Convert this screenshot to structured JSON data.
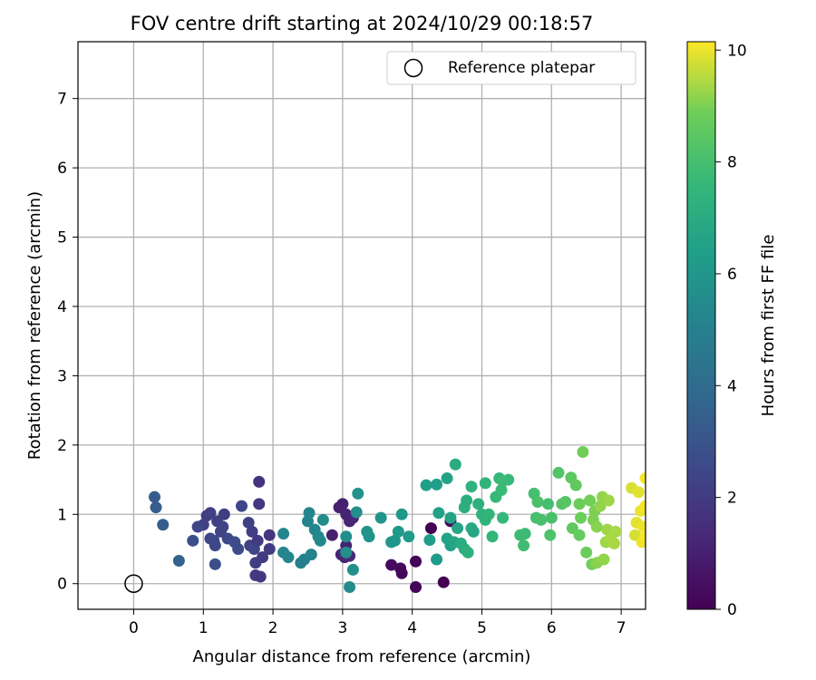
{
  "chart_data": {
    "type": "scatter",
    "title": "FOV centre drift starting at 2024/10/29 00:18:57",
    "xlabel": "Angular distance from reference (arcmin)",
    "ylabel": "Rotation from reference (arcmin)",
    "xlim": [
      -0.8,
      7.35
    ],
    "ylim": [
      -0.37,
      7.82
    ],
    "xticks": [
      "0",
      "1",
      "2",
      "3",
      "4",
      "5",
      "6",
      "7"
    ],
    "yticks": [
      "0",
      "1",
      "2",
      "3",
      "4",
      "5",
      "6",
      "7"
    ],
    "grid": true,
    "legend": {
      "location": "upper right",
      "entries": [
        "Reference platepar"
      ]
    },
    "reference_point": {
      "x": 0,
      "y": 0,
      "label": "Reference platepar"
    },
    "colorbar": {
      "label": "Hours from first FF file",
      "range": [
        0,
        10.15
      ],
      "ticks": [
        "0",
        "2",
        "4",
        "6",
        "8",
        "10"
      ],
      "colormap": "viridis"
    },
    "points": [
      {
        "x": 3.0,
        "y": 1.15,
        "h": 1.0
      },
      {
        "x": 2.95,
        "y": 1.1,
        "h": 1.0
      },
      {
        "x": 3.05,
        "y": 1.0,
        "h": 1.1
      },
      {
        "x": 3.1,
        "y": 0.9,
        "h": 1.1
      },
      {
        "x": 3.15,
        "y": 0.95,
        "h": 1.2
      },
      {
        "x": 2.85,
        "y": 0.7,
        "h": 1.0
      },
      {
        "x": 2.98,
        "y": 0.42,
        "h": 1.2
      },
      {
        "x": 3.03,
        "y": 0.38,
        "h": 1.2
      },
      {
        "x": 3.1,
        "y": 0.4,
        "h": 1.3
      },
      {
        "x": 3.05,
        "y": 0.55,
        "h": 1.1
      },
      {
        "x": 3.7,
        "y": 0.27,
        "h": 0.3
      },
      {
        "x": 3.83,
        "y": 0.22,
        "h": 0.3
      },
      {
        "x": 3.85,
        "y": 0.15,
        "h": 0.2
      },
      {
        "x": 4.05,
        "y": 0.32,
        "h": 0.1
      },
      {
        "x": 4.05,
        "y": -0.05,
        "h": 0.1
      },
      {
        "x": 4.27,
        "y": 0.8,
        "h": 0.0
      },
      {
        "x": 4.45,
        "y": 0.02,
        "h": 0.0
      },
      {
        "x": 4.55,
        "y": 0.9,
        "h": 0.2
      },
      {
        "x": 1.05,
        "y": 0.98,
        "h": 2.1
      },
      {
        "x": 1.1,
        "y": 1.02,
        "h": 2.2
      },
      {
        "x": 1.2,
        "y": 0.9,
        "h": 2.2
      },
      {
        "x": 1.25,
        "y": 0.75,
        "h": 2.3
      },
      {
        "x": 1.3,
        "y": 1.0,
        "h": 2.1
      },
      {
        "x": 1.28,
        "y": 0.82,
        "h": 2.3
      },
      {
        "x": 1.15,
        "y": 0.62,
        "h": 2.4
      },
      {
        "x": 1.1,
        "y": 0.65,
        "h": 2.4
      },
      {
        "x": 1.17,
        "y": 0.55,
        "h": 2.5
      },
      {
        "x": 1.35,
        "y": 0.65,
        "h": 2.5
      },
      {
        "x": 1.45,
        "y": 0.6,
        "h": 2.6
      },
      {
        "x": 1.5,
        "y": 0.5,
        "h": 2.6
      },
      {
        "x": 1.55,
        "y": 1.12,
        "h": 2.5
      },
      {
        "x": 1.65,
        "y": 0.88,
        "h": 2.2
      },
      {
        "x": 1.7,
        "y": 0.75,
        "h": 2.1
      },
      {
        "x": 1.67,
        "y": 0.55,
        "h": 2.3
      },
      {
        "x": 1.73,
        "y": 0.5,
        "h": 2.4
      },
      {
        "x": 1.78,
        "y": 0.62,
        "h": 2.0
      },
      {
        "x": 1.75,
        "y": 0.3,
        "h": 2.1
      },
      {
        "x": 1.85,
        "y": 0.38,
        "h": 2.0
      },
      {
        "x": 1.75,
        "y": 0.12,
        "h": 2.0
      },
      {
        "x": 1.82,
        "y": 0.1,
        "h": 1.9
      },
      {
        "x": 1.8,
        "y": 1.15,
        "h": 1.8
      },
      {
        "x": 1.8,
        "y": 1.47,
        "h": 1.7
      },
      {
        "x": 1.95,
        "y": 0.7,
        "h": 1.8
      },
      {
        "x": 1.95,
        "y": 0.5,
        "h": 2.0
      },
      {
        "x": 1.0,
        "y": 0.85,
        "h": 2.2
      },
      {
        "x": 0.92,
        "y": 0.82,
        "h": 2.4
      },
      {
        "x": 0.85,
        "y": 0.62,
        "h": 2.8
      },
      {
        "x": 1.17,
        "y": 0.28,
        "h": 2.8
      },
      {
        "x": 0.3,
        "y": 1.25,
        "h": 3.3
      },
      {
        "x": 0.32,
        "y": 1.1,
        "h": 3.4
      },
      {
        "x": 0.42,
        "y": 0.85,
        "h": 3.4
      },
      {
        "x": 0.65,
        "y": 0.33,
        "h": 3.6
      },
      {
        "x": 2.15,
        "y": 0.72,
        "h": 5.2
      },
      {
        "x": 2.15,
        "y": 0.45,
        "h": 5.2
      },
      {
        "x": 2.22,
        "y": 0.38,
        "h": 5.3
      },
      {
        "x": 2.4,
        "y": 0.3,
        "h": 5.0
      },
      {
        "x": 2.45,
        "y": 0.35,
        "h": 5.0
      },
      {
        "x": 2.5,
        "y": 0.9,
        "h": 5.1
      },
      {
        "x": 2.52,
        "y": 1.02,
        "h": 5.2
      },
      {
        "x": 2.55,
        "y": 0.42,
        "h": 5.1
      },
      {
        "x": 2.6,
        "y": 0.78,
        "h": 5.3
      },
      {
        "x": 2.65,
        "y": 0.68,
        "h": 5.4
      },
      {
        "x": 2.68,
        "y": 0.62,
        "h": 5.4
      },
      {
        "x": 2.72,
        "y": 0.92,
        "h": 5.5
      },
      {
        "x": 3.05,
        "y": 0.68,
        "h": 5.6
      },
      {
        "x": 3.05,
        "y": 0.45,
        "h": 5.6
      },
      {
        "x": 3.1,
        "y": -0.05,
        "h": 5.5
      },
      {
        "x": 3.15,
        "y": 0.2,
        "h": 5.7
      },
      {
        "x": 3.2,
        "y": 1.03,
        "h": 5.6
      },
      {
        "x": 3.22,
        "y": 1.3,
        "h": 5.8
      },
      {
        "x": 3.35,
        "y": 0.75,
        "h": 5.8
      },
      {
        "x": 3.38,
        "y": 0.68,
        "h": 5.9
      },
      {
        "x": 3.55,
        "y": 0.95,
        "h": 5.9
      },
      {
        "x": 3.7,
        "y": 0.6,
        "h": 6.0
      },
      {
        "x": 3.75,
        "y": 0.62,
        "h": 6.0
      },
      {
        "x": 3.8,
        "y": 0.75,
        "h": 6.1
      },
      {
        "x": 3.85,
        "y": 1.0,
        "h": 6.1
      },
      {
        "x": 3.95,
        "y": 0.68,
        "h": 6.2
      },
      {
        "x": 4.2,
        "y": 1.42,
        "h": 6.4
      },
      {
        "x": 4.35,
        "y": 1.43,
        "h": 6.4
      },
      {
        "x": 4.38,
        "y": 1.02,
        "h": 6.5
      },
      {
        "x": 4.5,
        "y": 1.52,
        "h": 6.6
      },
      {
        "x": 4.25,
        "y": 0.63,
        "h": 6.3
      },
      {
        "x": 4.35,
        "y": 0.35,
        "h": 6.2
      },
      {
        "x": 4.5,
        "y": 0.65,
        "h": 6.6
      },
      {
        "x": 4.55,
        "y": 0.55,
        "h": 6.5
      },
      {
        "x": 4.55,
        "y": 0.95,
        "h": 6.6
      },
      {
        "x": 4.6,
        "y": 0.6,
        "h": 6.7
      },
      {
        "x": 4.65,
        "y": 0.8,
        "h": 6.7
      },
      {
        "x": 4.62,
        "y": 1.72,
        "h": 7.0
      },
      {
        "x": 4.7,
        "y": 0.58,
        "h": 7.0
      },
      {
        "x": 4.75,
        "y": 0.5,
        "h": 7.1
      },
      {
        "x": 4.75,
        "y": 1.1,
        "h": 7.2
      },
      {
        "x": 4.78,
        "y": 1.2,
        "h": 7.1
      },
      {
        "x": 4.8,
        "y": 0.45,
        "h": 7.2
      },
      {
        "x": 4.85,
        "y": 0.8,
        "h": 6.9
      },
      {
        "x": 4.85,
        "y": 1.4,
        "h": 7.3
      },
      {
        "x": 4.88,
        "y": 0.75,
        "h": 6.8
      },
      {
        "x": 4.95,
        "y": 1.15,
        "h": 7.2
      },
      {
        "x": 5.0,
        "y": 1.0,
        "h": 7.3
      },
      {
        "x": 5.05,
        "y": 0.92,
        "h": 7.4
      },
      {
        "x": 5.05,
        "y": 1.45,
        "h": 7.4
      },
      {
        "x": 5.1,
        "y": 1.0,
        "h": 7.5
      },
      {
        "x": 5.15,
        "y": 0.68,
        "h": 7.5
      },
      {
        "x": 5.2,
        "y": 1.25,
        "h": 7.6
      },
      {
        "x": 5.25,
        "y": 1.52,
        "h": 7.6
      },
      {
        "x": 5.28,
        "y": 1.35,
        "h": 7.7
      },
      {
        "x": 5.3,
        "y": 0.95,
        "h": 7.6
      },
      {
        "x": 5.3,
        "y": 1.48,
        "h": 7.8
      },
      {
        "x": 5.38,
        "y": 1.5,
        "h": 7.7
      },
      {
        "x": 5.55,
        "y": 0.7,
        "h": 7.8
      },
      {
        "x": 5.6,
        "y": 0.55,
        "h": 7.9
      },
      {
        "x": 5.62,
        "y": 0.72,
        "h": 7.8
      },
      {
        "x": 5.75,
        "y": 1.3,
        "h": 8.0
      },
      {
        "x": 5.78,
        "y": 0.95,
        "h": 8.0
      },
      {
        "x": 5.8,
        "y": 1.18,
        "h": 8.1
      },
      {
        "x": 5.85,
        "y": 0.92,
        "h": 8.1
      },
      {
        "x": 5.95,
        "y": 1.15,
        "h": 8.0
      },
      {
        "x": 5.98,
        "y": 0.7,
        "h": 8.2
      },
      {
        "x": 6.0,
        "y": 0.95,
        "h": 8.1
      },
      {
        "x": 6.1,
        "y": 1.6,
        "h": 8.3
      },
      {
        "x": 6.15,
        "y": 1.15,
        "h": 8.3
      },
      {
        "x": 6.2,
        "y": 1.18,
        "h": 8.4
      },
      {
        "x": 6.28,
        "y": 1.53,
        "h": 8.5
      },
      {
        "x": 6.3,
        "y": 0.8,
        "h": 8.6
      },
      {
        "x": 6.35,
        "y": 1.42,
        "h": 8.6
      },
      {
        "x": 6.4,
        "y": 0.7,
        "h": 8.7
      },
      {
        "x": 6.4,
        "y": 1.15,
        "h": 8.8
      },
      {
        "x": 6.42,
        "y": 0.95,
        "h": 8.8
      },
      {
        "x": 6.45,
        "y": 1.9,
        "h": 8.9
      },
      {
        "x": 6.5,
        "y": 0.45,
        "h": 8.8
      },
      {
        "x": 6.55,
        "y": 1.2,
        "h": 8.9
      },
      {
        "x": 6.58,
        "y": 0.28,
        "h": 8.9
      },
      {
        "x": 6.6,
        "y": 0.92,
        "h": 9.0
      },
      {
        "x": 6.62,
        "y": 1.05,
        "h": 9.0
      },
      {
        "x": 6.65,
        "y": 0.3,
        "h": 9.1
      },
      {
        "x": 6.65,
        "y": 0.82,
        "h": 9.1
      },
      {
        "x": 6.7,
        "y": 1.12,
        "h": 9.2
      },
      {
        "x": 6.73,
        "y": 1.25,
        "h": 9.2
      },
      {
        "x": 6.75,
        "y": 0.35,
        "h": 9.2
      },
      {
        "x": 6.78,
        "y": 0.6,
        "h": 9.3
      },
      {
        "x": 6.8,
        "y": 0.78,
        "h": 9.3
      },
      {
        "x": 6.82,
        "y": 1.2,
        "h": 9.3
      },
      {
        "x": 6.85,
        "y": 0.65,
        "h": 9.4
      },
      {
        "x": 6.9,
        "y": 0.58,
        "h": 9.4
      },
      {
        "x": 6.92,
        "y": 0.75,
        "h": 9.4
      },
      {
        "x": 7.15,
        "y": 1.38,
        "h": 9.8
      },
      {
        "x": 7.2,
        "y": 0.7,
        "h": 9.8
      },
      {
        "x": 7.22,
        "y": 0.88,
        "h": 9.9
      },
      {
        "x": 7.25,
        "y": 1.32,
        "h": 9.9
      },
      {
        "x": 7.28,
        "y": 1.05,
        "h": 10.0
      },
      {
        "x": 7.3,
        "y": 0.6,
        "h": 10.0
      },
      {
        "x": 7.32,
        "y": 0.82,
        "h": 10.0
      },
      {
        "x": 7.35,
        "y": 1.52,
        "h": 10.1
      },
      {
        "x": 7.35,
        "y": 1.12,
        "h": 10.1
      },
      {
        "x": 7.35,
        "y": 0.68,
        "h": 10.1
      }
    ]
  }
}
